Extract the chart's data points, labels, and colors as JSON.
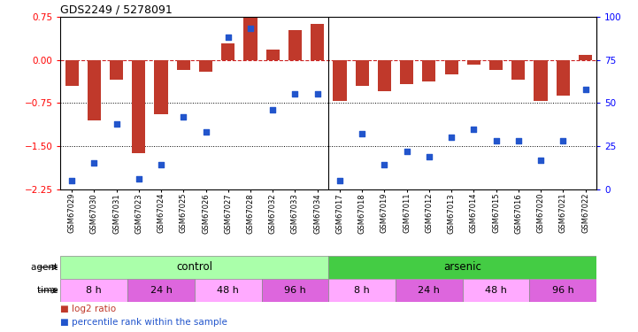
{
  "title": "GDS2249 / 5278091",
  "samples": [
    "GSM67029",
    "GSM67030",
    "GSM67031",
    "GSM67023",
    "GSM67024",
    "GSM67025",
    "GSM67026",
    "GSM67027",
    "GSM67028",
    "GSM67032",
    "GSM67033",
    "GSM67034",
    "GSM67017",
    "GSM67018",
    "GSM67019",
    "GSM67011",
    "GSM67012",
    "GSM67013",
    "GSM67014",
    "GSM67015",
    "GSM67016",
    "GSM67020",
    "GSM67021",
    "GSM67022"
  ],
  "log2ratio": [
    -0.45,
    -1.05,
    -0.35,
    -1.62,
    -0.95,
    -0.18,
    -0.2,
    0.28,
    0.73,
    0.18,
    0.52,
    0.62,
    -0.72,
    -0.45,
    -0.55,
    -0.42,
    -0.38,
    -0.25,
    -0.08,
    -0.18,
    -0.35,
    -0.72,
    -0.62,
    0.08
  ],
  "percentile": [
    5,
    15,
    38,
    6,
    14,
    42,
    33,
    88,
    93,
    46,
    55,
    55,
    5,
    32,
    14,
    22,
    19,
    30,
    35,
    28,
    28,
    17,
    28,
    58
  ],
  "bar_color": "#c0392b",
  "dot_color": "#2255cc",
  "ylim_left": [
    -2.25,
    0.75
  ],
  "ylim_right": [
    0,
    100
  ],
  "yticks_left": [
    0.75,
    0.0,
    -0.75,
    -1.5,
    -2.25
  ],
  "yticks_right": [
    100,
    75,
    50,
    25,
    0
  ],
  "control_color": "#aaffaa",
  "arsenic_color": "#44cc44",
  "time_color_light": "#ffaaff",
  "time_color_dark": "#dd66dd",
  "xticklabel_fontsize": 6.0,
  "bar_width": 0.6,
  "dot_size": 25,
  "time_groups": [
    {
      "label": "8 h",
      "start": 0,
      "end": 3,
      "dark": false
    },
    {
      "label": "24 h",
      "start": 3,
      "end": 6,
      "dark": true
    },
    {
      "label": "48 h",
      "start": 6,
      "end": 9,
      "dark": false
    },
    {
      "label": "96 h",
      "start": 9,
      "end": 12,
      "dark": true
    },
    {
      "label": "8 h",
      "start": 12,
      "end": 15,
      "dark": false
    },
    {
      "label": "24 h",
      "start": 15,
      "end": 18,
      "dark": true
    },
    {
      "label": "48 h",
      "start": 18,
      "end": 21,
      "dark": false
    },
    {
      "label": "96 h",
      "start": 21,
      "end": 24,
      "dark": true
    }
  ]
}
